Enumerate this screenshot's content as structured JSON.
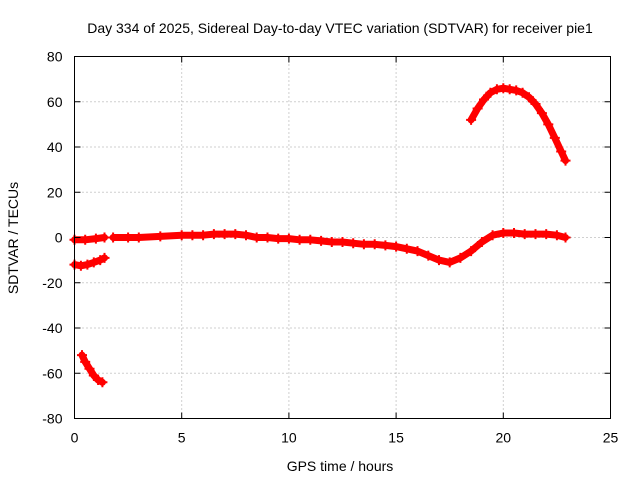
{
  "chart_data": {
    "type": "line",
    "title": "Day 334 of 2025, Sidereal Day-to-day VTEC variation (SDTVAR) for receiver pie1",
    "xlabel": "GPS time / hours",
    "ylabel": "SDTVAR / TECUs",
    "xlim": [
      0,
      25
    ],
    "ylim": [
      -80,
      80
    ],
    "xticks": [
      0,
      5,
      10,
      15,
      20,
      25
    ],
    "xtick_labels": [
      "0",
      "5",
      "10",
      "15",
      "20",
      "25"
    ],
    "yticks": [
      -80,
      -60,
      -40,
      -20,
      0,
      20,
      40,
      60,
      80
    ],
    "ytick_labels": [
      "-80",
      "-60",
      "-40",
      "-20",
      "0",
      "20",
      "40",
      "60",
      "80"
    ],
    "grid": true,
    "marker": "plus",
    "color": "#ff0000",
    "series": [
      {
        "name": "track-main-start",
        "x": [
          0.0,
          0.5,
          1.0,
          1.4
        ],
        "y": [
          -1,
          -1,
          -0.5,
          0
        ]
      },
      {
        "name": "track-main",
        "x": [
          1.8,
          2.5,
          3.0,
          4.0,
          5.0,
          5.5,
          6.0,
          6.5,
          7.0,
          7.5,
          8.0,
          8.5,
          9.0,
          9.5,
          10.0,
          10.5,
          11.0,
          11.5,
          12.0,
          12.5,
          13.0,
          13.5,
          14.0,
          14.5,
          15.0,
          15.5,
          16.0,
          16.5,
          17.0,
          17.5,
          18.0,
          18.5,
          19.0,
          19.5,
          20.0,
          20.5,
          21.0,
          21.5,
          22.0,
          22.5,
          22.9
        ],
        "y": [
          0,
          0,
          0,
          0.5,
          1,
          1,
          1,
          1.5,
          1.5,
          1.5,
          1,
          0,
          0,
          -0.5,
          -0.5,
          -1,
          -1,
          -1.5,
          -2,
          -2,
          -2.5,
          -3,
          -3,
          -3.5,
          -4,
          -5,
          -6,
          -8,
          -10,
          -11,
          -9,
          -6,
          -2,
          1,
          2,
          2,
          1.5,
          1.5,
          1.5,
          1,
          0
        ]
      },
      {
        "name": "track-low-start",
        "x": [
          0.0,
          0.3,
          0.6,
          0.9,
          1.2,
          1.4
        ],
        "y": [
          -12,
          -12.5,
          -12,
          -11,
          -10,
          -9
        ]
      },
      {
        "name": "track-negative",
        "x": [
          0.35,
          0.5,
          0.7,
          0.9,
          1.1,
          1.3
        ],
        "y": [
          -52,
          -55,
          -58,
          -61,
          -63,
          -64
        ]
      },
      {
        "name": "track-arc",
        "x": [
          18.5,
          18.8,
          19.1,
          19.4,
          19.7,
          20.0,
          20.3,
          20.6,
          20.9,
          21.2,
          21.5,
          21.8,
          22.1,
          22.4,
          22.7,
          22.9
        ],
        "y": [
          52,
          57,
          61,
          64,
          65.5,
          66,
          65.5,
          65,
          64,
          62,
          59,
          55,
          50,
          44,
          38,
          34
        ]
      }
    ]
  }
}
